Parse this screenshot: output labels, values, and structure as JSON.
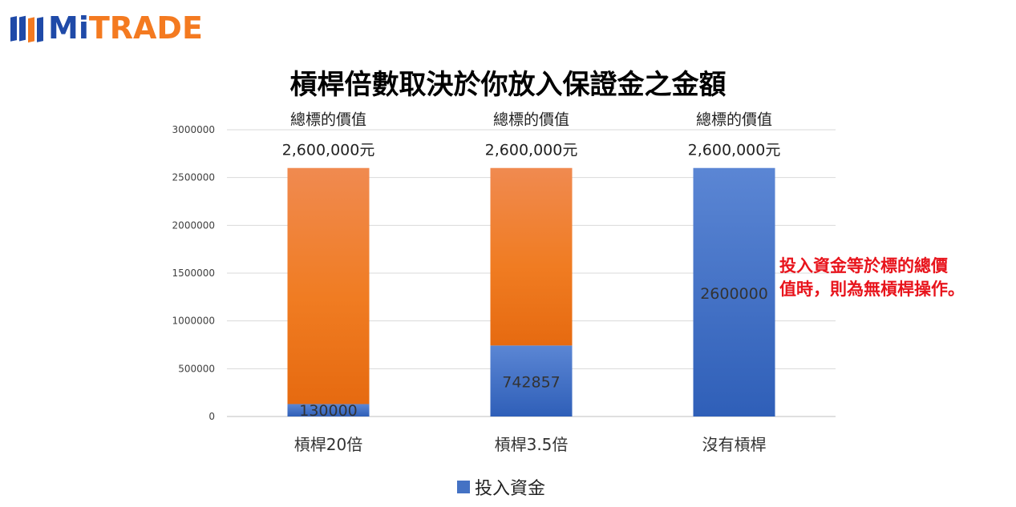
{
  "brand": {
    "mi": "Mi",
    "trade": "TRADE"
  },
  "note": {
    "line1": "投入資金等於標的總價",
    "line2": "值時，則為無槓桿操作。"
  },
  "colors": {
    "blue": "#4472c4",
    "orange": "#f07c22",
    "note": "#e8141c"
  },
  "chart_data": {
    "type": "bar",
    "stacked": true,
    "title": "槓桿倍數取決於你放入保證金之金額",
    "categories": [
      "槓桿20倍",
      "槓桿3.5倍",
      "沒有槓桿"
    ],
    "series": [
      {
        "name": "投入資金",
        "values": [
          130000,
          742857,
          2600000
        ],
        "data_labels": [
          "130000",
          "742857",
          "2600000"
        ]
      },
      {
        "values": [
          2470000,
          1857143,
          0
        ]
      }
    ],
    "totals": [
      2600000,
      2600000,
      2600000
    ],
    "total_labels": [
      "2,600,000元",
      "2,600,000元",
      "2,600,000元"
    ],
    "total_captions": [
      "總標的價值",
      "總標的價值",
      "總標的價值"
    ],
    "yticks": [
      "0",
      "500000",
      "1000000",
      "1500000",
      "2000000",
      "2500000",
      "3000000"
    ],
    "ylim": [
      0,
      3000000
    ],
    "grid": true,
    "legend": "bottom"
  }
}
